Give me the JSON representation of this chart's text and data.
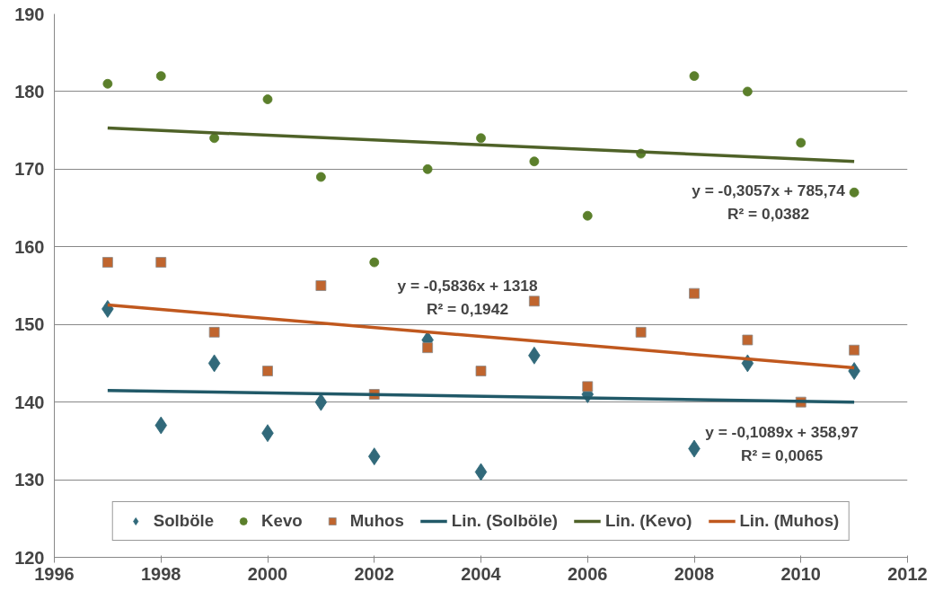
{
  "chart_data": {
    "type": "scatter",
    "xlim": [
      1996,
      2012
    ],
    "xticks": [
      1996,
      1998,
      2000,
      2002,
      2004,
      2006,
      2008,
      2010,
      2012
    ],
    "ylim": [
      120,
      190
    ],
    "yticks": [
      120,
      130,
      140,
      150,
      160,
      170,
      180,
      190
    ],
    "grid": "y",
    "legend": "bottom",
    "series": [
      {
        "name": "Solböle",
        "marker": "diamond",
        "color": "#31697a",
        "x": [
          1997,
          1998,
          1999,
          2000,
          2001,
          2002,
          2003,
          2004,
          2005,
          2006,
          2007,
          2008,
          2009,
          2010,
          2011
        ],
        "values": [
          152,
          137,
          145,
          136,
          140,
          133,
          148,
          131,
          146,
          141,
          null,
          134,
          145,
          null,
          144
        ]
      },
      {
        "name": "Kevo",
        "marker": "circle",
        "color": "#5b7f2b",
        "x": [
          1997,
          1998,
          1999,
          2000,
          2001,
          2002,
          2003,
          2004,
          2005,
          2006,
          2007,
          2008,
          2009,
          2010,
          2011
        ],
        "values": [
          181,
          182,
          174,
          179,
          169,
          158,
          170,
          174,
          171,
          164,
          172,
          182,
          180,
          173.4,
          167
        ]
      },
      {
        "name": "Muhos",
        "marker": "square",
        "color": "#c0652e",
        "x": [
          1997,
          1998,
          1999,
          2000,
          2001,
          2002,
          2003,
          2004,
          2005,
          2006,
          2007,
          2008,
          2009,
          2010,
          2011
        ],
        "values": [
          158,
          158,
          149,
          144,
          155,
          141,
          147,
          144,
          153,
          142,
          149,
          154,
          148,
          140,
          146.7
        ]
      },
      {
        "name": "Lin. (Solböle)",
        "type": "line",
        "line_style": "solid",
        "color": "#215968",
        "x": [
          1997,
          2011
        ],
        "values": [
          141.5,
          140.0
        ]
      },
      {
        "name": "Lin. (Kevo)",
        "type": "line",
        "line_style": "solid",
        "color": "#4f6228",
        "x": [
          1997,
          2011
        ],
        "values": [
          175.3,
          171.0
        ]
      },
      {
        "name": "Lin. (Muhos)",
        "type": "line",
        "line_style": "solid",
        "color": "#c0581e",
        "x": [
          1997,
          2011
        ],
        "values": [
          152.5,
          144.4
        ]
      }
    ],
    "annotations": [
      "y = -0,3057x + 785,74",
      "R² = 0,0382",
      "y = -0,5836x + 1318",
      "R² = 0,1942",
      "y = -0,1089x + 358,97",
      "R² = 0,0065"
    ]
  }
}
